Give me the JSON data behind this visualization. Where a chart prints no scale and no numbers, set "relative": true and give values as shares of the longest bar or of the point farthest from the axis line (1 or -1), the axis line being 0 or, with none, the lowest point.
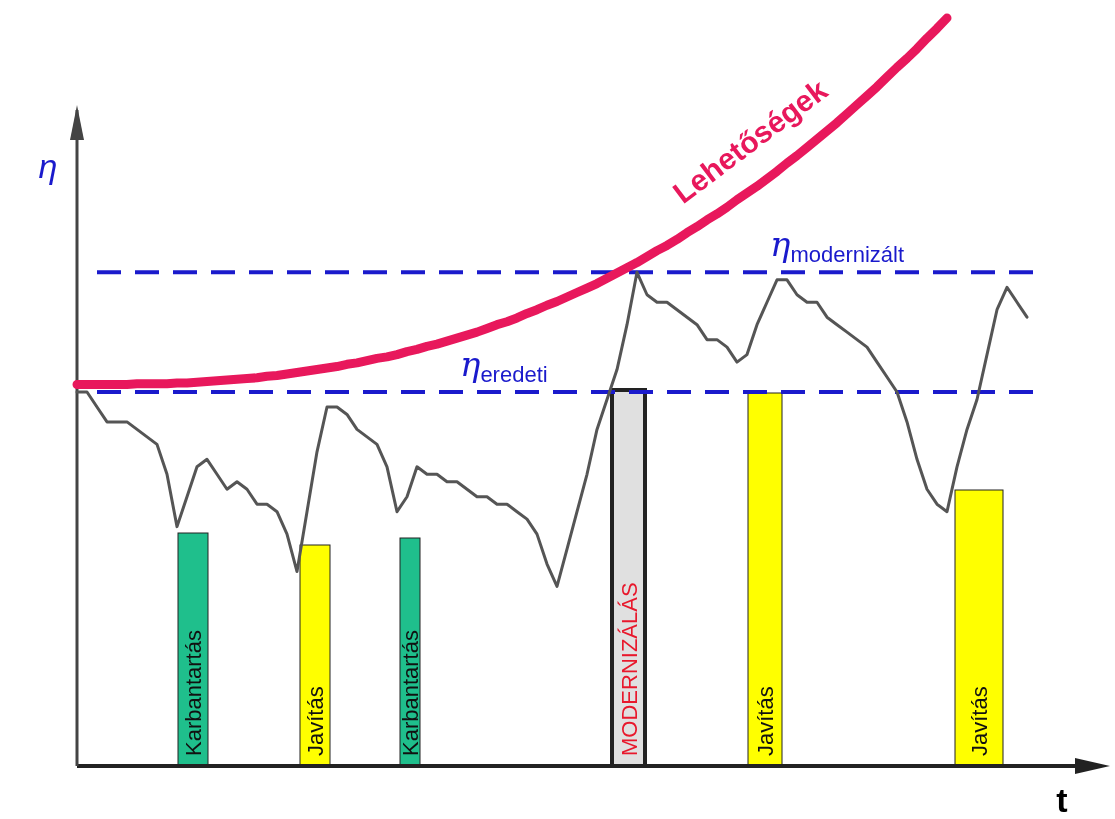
{
  "chart_data": {
    "type": "line",
    "relative": true,
    "xlabel": "t",
    "ylabel": "η",
    "categories": [
      null,
      null,
      null,
      null,
      null,
      null,
      null,
      null,
      null,
      null,
      null,
      null,
      null,
      null,
      null,
      null,
      null,
      null,
      null,
      null,
      null,
      null,
      null,
      null,
      null,
      null,
      null,
      null,
      null,
      null,
      null,
      null,
      null,
      null,
      null,
      null,
      null,
      null,
      null,
      null,
      null,
      null,
      null,
      null,
      null,
      null,
      null,
      null,
      null,
      null,
      null,
      null,
      null,
      null,
      null,
      null,
      null,
      null,
      null,
      null,
      null,
      null,
      null,
      null,
      null,
      null,
      null,
      null,
      null,
      null,
      null,
      null,
      null,
      null,
      null,
      null,
      null,
      null,
      null,
      null,
      null,
      null,
      null,
      null,
      null,
      null,
      null,
      null,
      null,
      null,
      null,
      null,
      null,
      null,
      null,
      null,
      null,
      null,
      null,
      null,
      null,
      null
    ],
    "series": [
      {
        "color": "#555555",
        "values": [
          0.5,
          0.5,
          0.48,
          0.46,
          0.46,
          0.46,
          0.45,
          0.44,
          0.43,
          0.39,
          0.32,
          0.36,
          0.4,
          0.41,
          0.39,
          0.37,
          0.38,
          0.37,
          0.35,
          0.35,
          0.34,
          0.31,
          0.26,
          0.34,
          0.42,
          0.48,
          0.48,
          0.47,
          0.45,
          0.44,
          0.43,
          0.4,
          0.34,
          0.36,
          0.4,
          0.39,
          0.39,
          0.38,
          0.38,
          0.37,
          0.36,
          0.36,
          0.35,
          0.35,
          0.34,
          0.33,
          0.31,
          0.27,
          0.24,
          0.29,
          0.34,
          0.39,
          0.45,
          0.49,
          0.53,
          0.59,
          0.66,
          0.63,
          0.62,
          0.62,
          0.61,
          0.6,
          0.59,
          0.57,
          0.57,
          0.56,
          0.54,
          0.55,
          0.59,
          0.62,
          0.65,
          0.65,
          0.63,
          0.62,
          0.62,
          0.6,
          0.59,
          0.58,
          0.57,
          0.56,
          0.54,
          0.52,
          0.5,
          0.46,
          0.41,
          0.37,
          0.35,
          0.34,
          0.4,
          0.45,
          0.49,
          0.55,
          0.61,
          0.64,
          0.62,
          0.6,
          null,
          null,
          null,
          null,
          null,
          null
        ]
      },
      {
        "name": "Lehetőségek",
        "color": "#e8185c",
        "values": [
          0.51,
          0.51,
          0.51,
          0.51,
          0.51,
          0.51,
          0.511,
          0.511,
          0.511,
          0.511,
          0.512,
          0.512,
          0.513,
          0.514,
          0.515,
          0.516,
          0.517,
          0.518,
          0.519,
          0.521,
          0.522,
          0.524,
          0.526,
          0.528,
          0.53,
          0.532,
          0.534,
          0.537,
          0.539,
          0.542,
          0.545,
          0.547,
          0.55,
          0.554,
          0.557,
          0.561,
          0.564,
          0.568,
          0.572,
          0.576,
          0.58,
          0.585,
          0.59,
          0.594,
          0.599,
          0.605,
          0.61,
          0.616,
          0.621,
          0.627,
          0.633,
          0.639,
          0.645,
          0.652,
          0.659,
          0.666,
          0.673,
          0.681,
          0.689,
          0.696,
          0.704,
          0.713,
          0.721,
          0.73,
          0.738,
          0.747,
          0.757,
          0.766,
          0.775,
          0.785,
          0.795,
          0.806,
          0.816,
          0.827,
          0.838,
          0.849,
          0.86,
          0.872,
          0.884,
          0.896,
          0.908,
          0.921,
          0.934,
          0.946,
          0.959,
          0.973,
          0.986,
          1.0,
          null,
          null,
          null,
          null,
          null,
          null,
          null,
          null,
          null,
          null,
          null,
          null,
          null,
          null
        ]
      }
    ],
    "annotations": [
      "Karbantartás",
      "Javítás",
      "Karbantartás",
      "MODERNIZÁLÁS",
      "Javítás",
      "Javítás"
    ],
    "ref_lines": [
      {
        "axis": "y",
        "value": 0.5,
        "label": "η$_{eredeti}$",
        "color": "#1a1acc",
        "line_style": "dashed"
      },
      {
        "axis": "y",
        "value": 0.66,
        "label": "η$_{modernizált}$",
        "color": "#1a1acc",
        "line_style": "dashed"
      }
    ]
  }
}
